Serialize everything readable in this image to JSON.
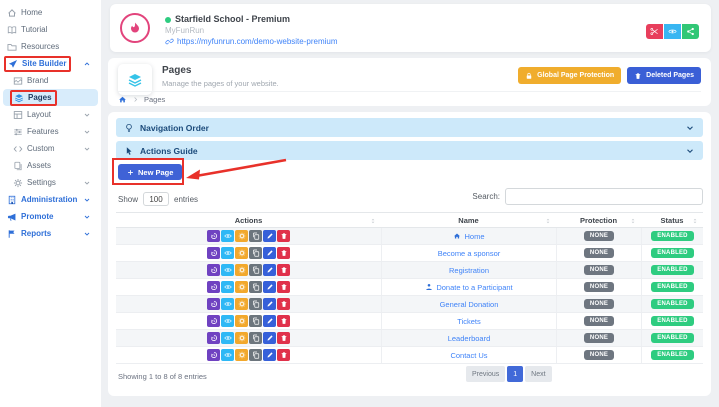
{
  "colors": {
    "annotation": "#e8312a",
    "link": "#3f83f8",
    "accent_blue": "#3f62d6"
  },
  "sidebar": {
    "items": [
      {
        "label": "Home",
        "icon": "home",
        "level": "top"
      },
      {
        "label": "Tutorial",
        "icon": "book",
        "level": "top"
      },
      {
        "label": "Resources",
        "icon": "folder",
        "level": "top"
      },
      {
        "label": "Site Builder",
        "icon": "plane",
        "level": "top",
        "blue": true,
        "chevron": "up",
        "annotated": true
      },
      {
        "label": "Brand",
        "icon": "frame",
        "level": "sub"
      },
      {
        "label": "Pages",
        "icon": "layers",
        "level": "sub",
        "active": true,
        "annotated": true
      },
      {
        "label": "Layout",
        "icon": "layout",
        "level": "sub",
        "chevron": "down"
      },
      {
        "label": "Features",
        "icon": "sliders",
        "level": "sub",
        "chevron": "down"
      },
      {
        "label": "Custom",
        "icon": "code",
        "level": "sub",
        "chevron": "down"
      },
      {
        "label": "Assets",
        "icon": "assets",
        "level": "sub"
      },
      {
        "label": "Settings",
        "icon": "gear",
        "level": "sub",
        "chevron": "down"
      },
      {
        "label": "Administration",
        "icon": "building",
        "level": "top",
        "blue": true,
        "chevron": "down"
      },
      {
        "label": "Promote",
        "icon": "megaphone",
        "level": "top",
        "blue": true,
        "chevron": "down"
      },
      {
        "label": "Reports",
        "icon": "flag",
        "level": "top",
        "blue": true,
        "chevron": "down"
      }
    ]
  },
  "site_header": {
    "site_name": "Starfield School - Premium",
    "platform": "MyFunRun",
    "url": "https://myfunrun.com/demo-website-premium",
    "actions": [
      {
        "name": "unpublish-site",
        "icon": "scissors",
        "color": "#e83e5c"
      },
      {
        "name": "preview-site",
        "icon": "eye",
        "color": "#38b6f2"
      },
      {
        "name": "share-site",
        "icon": "share",
        "color": "#31c776"
      }
    ]
  },
  "page_header": {
    "title": "Pages",
    "subtitle": "Manage the pages of your website.",
    "buttons": [
      {
        "name": "global-page-protection",
        "label": "Global Page Protection",
        "icon": "lock",
        "color": "#f0ad2d"
      },
      {
        "name": "deleted-pages",
        "label": "Deleted Pages",
        "icon": "trash",
        "color": "#3a5fd6"
      }
    ],
    "breadcrumb_current": "Pages"
  },
  "panels": [
    {
      "label": "Navigation Order",
      "icon": "bulb"
    },
    {
      "label": "Actions Guide",
      "icon": "cursor"
    }
  ],
  "new_page": {
    "label": "New Page"
  },
  "controls": {
    "show_label": "Show",
    "show_value": "100",
    "entries_label": "entries",
    "search_label": "Search:"
  },
  "table": {
    "headers": [
      "Actions",
      "Name",
      "Protection",
      "Status"
    ],
    "action_buttons": [
      {
        "name": "history",
        "icon": "history",
        "color": "#6f42c1"
      },
      {
        "name": "preview",
        "icon": "eye",
        "color": "#2eb8f5"
      },
      {
        "name": "settings",
        "icon": "gear",
        "color": "#f2a82c"
      },
      {
        "name": "duplicate",
        "icon": "copy",
        "color": "#6c757d"
      },
      {
        "name": "edit",
        "icon": "pencil",
        "color": "#3660d9"
      },
      {
        "name": "delete",
        "icon": "trash",
        "color": "#e0314b"
      }
    ],
    "badge_colors": {
      "protection": "#6e7680",
      "status": "#2ecc80"
    },
    "rows": [
      {
        "name": "Home",
        "name_icon": "homefill",
        "protection": "NONE",
        "status": "ENABLED"
      },
      {
        "name": "Become a sponsor",
        "protection": "NONE",
        "status": "ENABLED"
      },
      {
        "name": "Registration",
        "protection": "NONE",
        "status": "ENABLED"
      },
      {
        "name": "Donate to a Participant",
        "name_icon": "person",
        "protection": "NONE",
        "status": "ENABLED"
      },
      {
        "name": "General Donation",
        "protection": "NONE",
        "status": "ENABLED"
      },
      {
        "name": "Tickets",
        "protection": "NONE",
        "status": "ENABLED"
      },
      {
        "name": "Leaderboard",
        "protection": "NONE",
        "status": "ENABLED"
      },
      {
        "name": "Contact Us",
        "protection": "NONE",
        "status": "ENABLED"
      }
    ]
  },
  "footer": {
    "summary": "Showing 1 to 8 of 8 entries",
    "pagination": [
      "Previous",
      "1",
      "Next"
    ],
    "current_page": "1"
  }
}
